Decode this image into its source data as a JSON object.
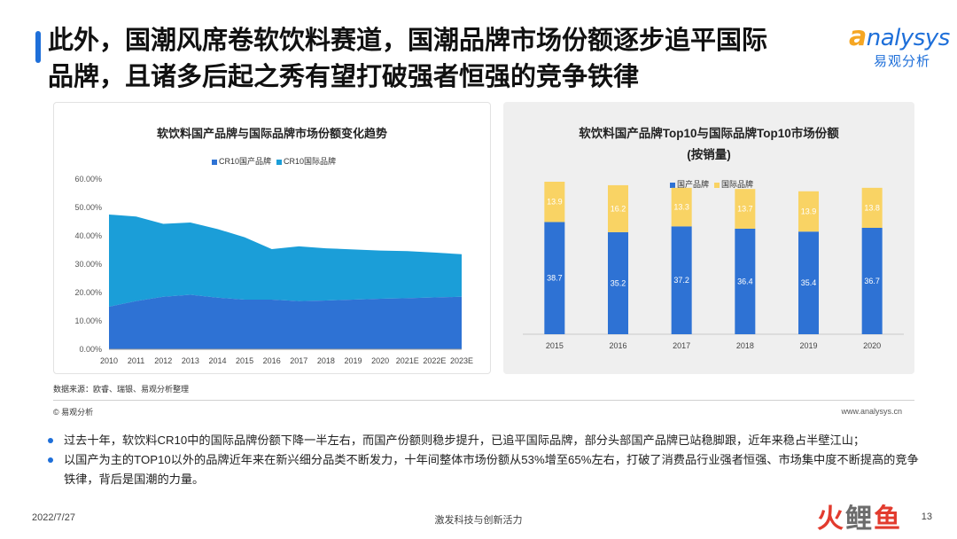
{
  "header": {
    "title_line1": "此外，国潮风席卷软饮料赛道，国潮品牌市场份额逐步追平国际",
    "title_line2": "品牌，且诸多后起之秀有望打破强者恒强的竞争铁律"
  },
  "logo": {
    "en_prefix": "a",
    "en_rest": "nalysys",
    "cn": "易观分析"
  },
  "colors": {
    "accent": "#1e6fd9",
    "domestic": "#2e72d4",
    "international": "#1b9ed8",
    "intl_bar": "#f9d364"
  },
  "chart_data": [
    {
      "type": "area",
      "title": "软饮料国产品牌与国际品牌市场份额变化趋势",
      "stacked": true,
      "categories": [
        "2010",
        "2011",
        "2012",
        "2013",
        "2014",
        "2015",
        "2016",
        "2017",
        "2018",
        "2019",
        "2020",
        "2021E",
        "2022E",
        "2023E"
      ],
      "series": [
        {
          "name": "CR10国产品牌",
          "color": "#2e72d4",
          "values": [
            15.0,
            17.0,
            18.5,
            19.2,
            18.2,
            17.5,
            17.5,
            17.0,
            17.2,
            17.5,
            17.8,
            18.0,
            18.3,
            18.5
          ]
        },
        {
          "name": "CR10国际品牌",
          "color": "#1b9ed8",
          "values": [
            32.5,
            29.8,
            25.7,
            25.5,
            24.2,
            22.0,
            17.8,
            19.3,
            18.4,
            17.7,
            17.0,
            16.6,
            15.8,
            15.0
          ]
        }
      ],
      "y_ticks": [
        "0.00%",
        "10.00%",
        "20.00%",
        "30.00%",
        "40.00%",
        "50.00%",
        "60.00%"
      ],
      "ylim": [
        0,
        60
      ],
      "legend_position": "top"
    },
    {
      "type": "bar",
      "title_line1": "软饮料国产品牌Top10与国际品牌Top10市场份额",
      "title_line2": "(按销量)",
      "stacked": true,
      "categories": [
        "2015",
        "2016",
        "2017",
        "2018",
        "2019",
        "2020"
      ],
      "series": [
        {
          "name": "国产品牌",
          "color": "#2e72d4",
          "values": [
            38.7,
            35.2,
            37.2,
            36.4,
            35.4,
            36.7
          ]
        },
        {
          "name": "国际品牌",
          "color": "#f9d364",
          "values": [
            13.9,
            16.2,
            13.3,
            13.7,
            13.9,
            13.8
          ]
        }
      ],
      "labels": {
        "domestic": [
          "38.7",
          "35.2",
          "37.2",
          "36.4",
          "35.4",
          "36.7"
        ],
        "international": [
          "13.9",
          "16.2",
          "13.3",
          "13.7",
          "13.9",
          "13.8"
        ]
      },
      "ylim": [
        0,
        60
      ],
      "legend_position": "top"
    }
  ],
  "source": "数据来源：欧睿、瑞银、易观分析整理",
  "copyright": "© 易观分析",
  "website": "www.analysys.cn",
  "bullets": [
    "过去十年，软饮料CR10中的国际品牌份额下降一半左右，而国产份额则稳步提升，已追平国际品牌，部分头部国产品牌已站稳脚跟，近年来稳占半壁江山；",
    "以国产为主的TOP10以外的品牌近年来在新兴细分品类不断发力，十年间整体市场份额从53%增至65%左右，打破了消费品行业强者恒强、市场集中度不断提高的竞争铁律，背后是国潮的力量。"
  ],
  "footer": {
    "date": "2022/7/27",
    "center": "激发科技与创新活力",
    "page": "13"
  },
  "watermark": {
    "m1": "火",
    "m2": "鲤",
    "m3": "鱼"
  }
}
